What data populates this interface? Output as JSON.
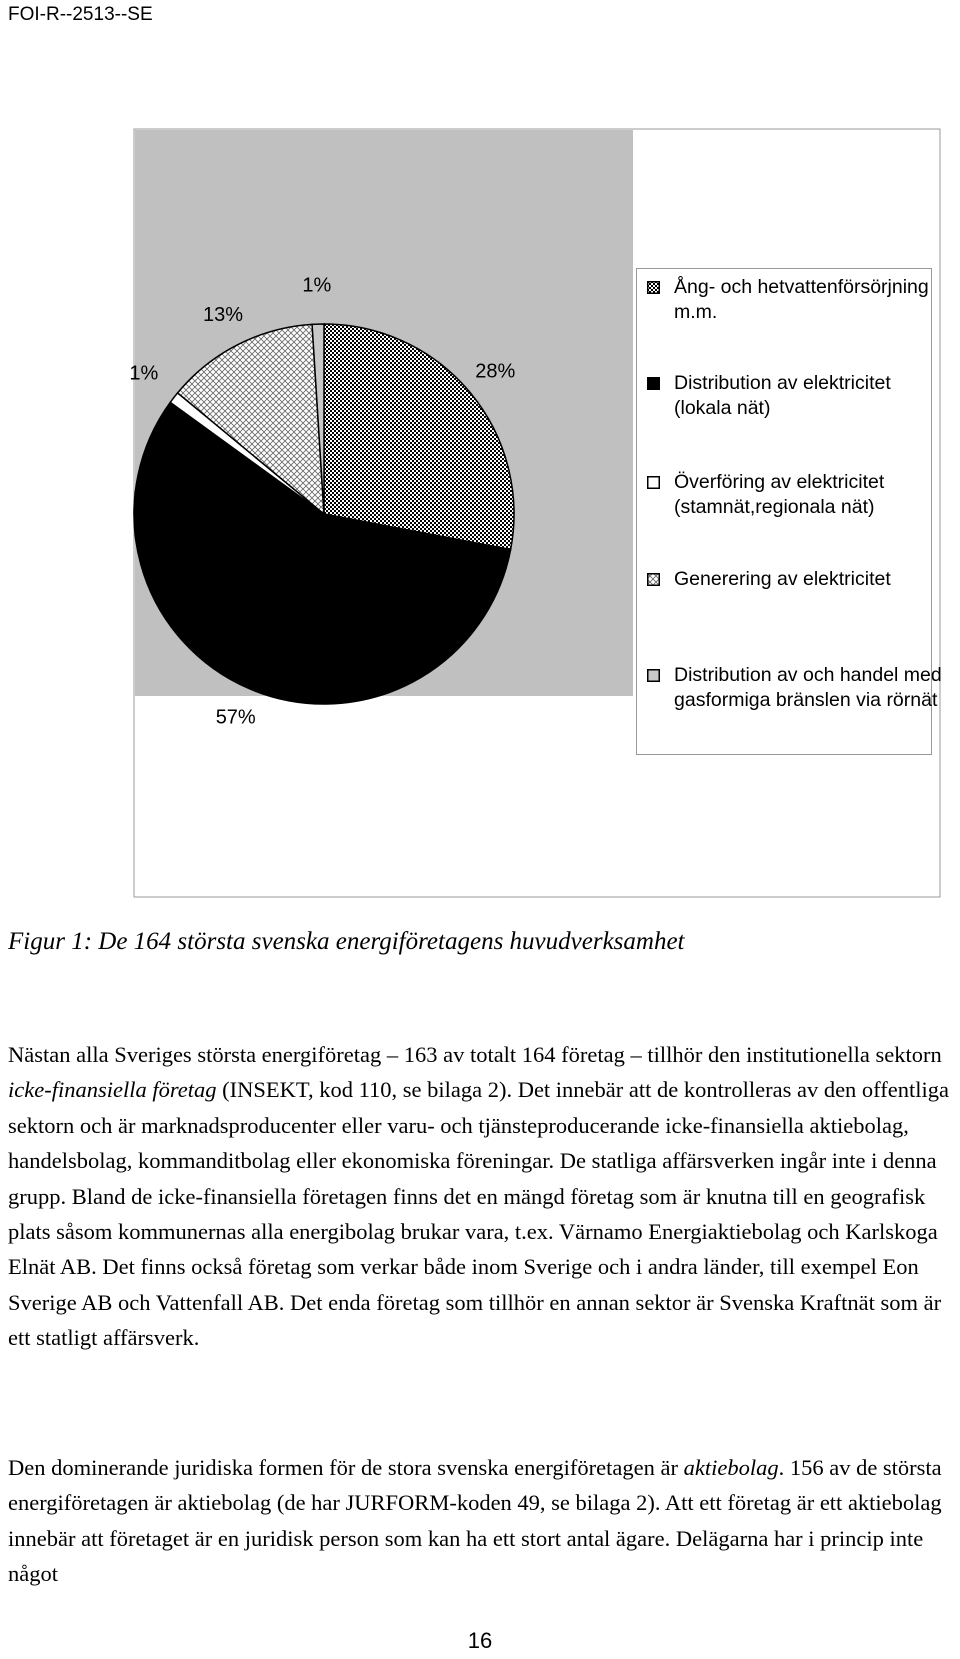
{
  "header": {
    "report_id": "FOI-R--2513--SE"
  },
  "chart_data": {
    "type": "pie",
    "categories": [
      "Ång- och hetvattenförsörjning m.m.",
      "Distribution av elektricitet (lokala nät)",
      "Överföring av elektricitet (stamnät,regionala nät)",
      "Generering av elektricitet",
      "Distribution av och handel med gasformiga bränslen via rörnät"
    ],
    "values": [
      28,
      57,
      1,
      13,
      1
    ],
    "value_labels": [
      "28%",
      "57%",
      "1%",
      "13%",
      "1%"
    ]
  },
  "caption": "Figur 1: De 164 största svenska energiföretagens huvudverksamhet",
  "paragraphs": [
    [
      {
        "text": "Nästan alla Sveriges största energiföretag – 163 av totalt 164 företag – tillhör den institutionella sektorn "
      },
      {
        "text": "icke-finansiella företag",
        "italic": true
      },
      {
        "text": " (INSEKT, kod 110, se bilaga 2). Det innebär att de kontrolleras av den offentliga sektorn och är marknadsproducenter eller varu- och tjänsteproducerande icke-finansiella aktiebolag, handelsbolag, kommanditbolag eller ekonomiska föreningar. De statliga affärsverken ingår inte i denna grupp. Bland de icke-finansiella företagen finns det en mängd företag som är knutna till en geografisk plats såsom kommunernas alla energibolag brukar vara, t.ex. Värnamo Energiaktiebolag och Karlskoga Elnät AB. Det finns också företag som verkar både inom Sverige och i andra länder, till exempel Eon Sverige AB och Vattenfall AB. Det enda företag som tillhör en annan sektor är Svenska Kraftnät som är ett statligt affärsverk."
      }
    ],
    [
      {
        "text": "Den dominerande juridiska formen för de stora svenska energiföretagen är "
      },
      {
        "text": "aktiebolag",
        "italic": true
      },
      {
        "text": ". 156 av de största energiföretagen är aktiebolag (de har JURFORM-koden 49, se bilaga 2). Att ett företag är ett aktiebolag innebär att företaget är en juridisk person som kan ha ett stort antal ägare. Delägarna har i princip inte något"
      }
    ]
  ],
  "page_number": "16"
}
